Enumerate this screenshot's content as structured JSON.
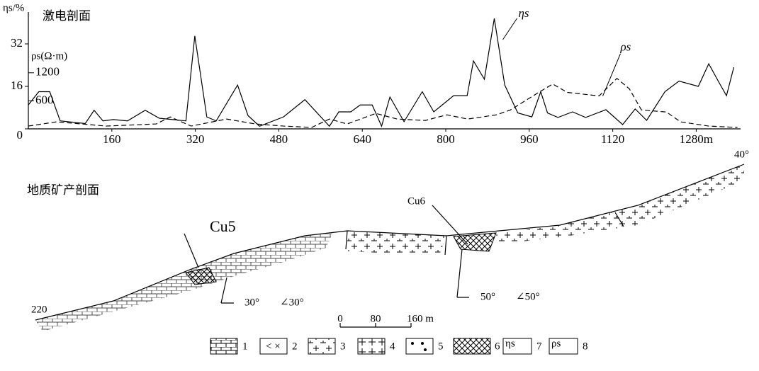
{
  "chart_data": {
    "type": "line",
    "title": "激电剖面",
    "y_label": "ηs/%",
    "y2_label": "ρs(Ω·m)",
    "xlim": [
      0,
      1365
    ],
    "xticks": [
      160,
      320,
      480,
      640,
      800,
      960,
      1120,
      {
        "value": 1280,
        "label": "1280m"
      }
    ],
    "ylim": [
      0,
      44
    ],
    "yticks": [
      0,
      16,
      32
    ],
    "y2lim": [
      0,
      2500
    ],
    "y2ticks": [
      600,
      1200
    ],
    "series": [
      {
        "name": "ηs",
        "color": "#000000",
        "line_style": "solid",
        "x": [
          0,
          20,
          41,
          61,
          109,
          126,
          143,
          163,
          190,
          224,
          251,
          302,
          319,
          342,
          360,
          401,
          421,
          443,
          489,
          530,
          577,
          595,
          618,
          636,
          659,
          677,
          693,
          720,
          755,
          777,
          815,
          841,
          853,
          874,
          893,
          913,
          938,
          965,
          982,
          995,
          1015,
          1043,
          1068,
          1107,
          1139,
          1163,
          1185,
          1220,
          1247,
          1284,
          1304,
          1325,
          1338,
          1352
        ],
        "values": [
          9,
          14,
          14,
          3,
          2,
          7,
          3,
          3.5,
          3,
          7,
          4,
          3,
          35,
          4.5,
          3,
          16.5,
          5,
          1,
          4.5,
          11,
          1,
          6.4,
          6.4,
          9,
          9,
          1,
          12,
          2.7,
          14,
          6.4,
          12.5,
          12.5,
          25.6,
          18.7,
          41.6,
          16.5,
          6,
          4.5,
          14,
          6,
          4.3,
          6.4,
          4.3,
          7.2,
          1.6,
          7.5,
          3.2,
          14,
          18,
          16,
          24.5,
          17,
          12.5,
          23.2
        ]
      },
      {
        "name": "ρs",
        "color": "#000000",
        "line_style": "dashed",
        "axis": "y2",
        "x": [
          0,
          54,
          149,
          245,
          272,
          312,
          380,
          435,
          489,
          543,
          577,
          611,
          666,
          707,
          761,
          802,
          842,
          897,
          924,
          978,
          1005,
          1033,
          1094,
          1128,
          1152,
          1175,
          1223,
          1250,
          1304,
          1359
        ],
        "values": [
          60,
          150,
          60,
          105,
          255,
          60,
          210,
          105,
          60,
          30,
          210,
          105,
          330,
          210,
          180,
          300,
          210,
          300,
          405,
          780,
          960,
          780,
          705,
          1080,
          855,
          405,
          360,
          150,
          60,
          30
        ]
      }
    ]
  },
  "section": {
    "title": "地质矿产剖面",
    "labels": {
      "cu5": "Cu5",
      "cu6": "Cu6",
      "dip1": "30°",
      "angle1": "∠30°",
      "dip2": "50°",
      "angle2": "∠50°",
      "start": "220",
      "end": "40°"
    },
    "scale": [
      "0",
      "80",
      "160 m"
    ],
    "legend": [
      "1",
      "2",
      "3",
      "4",
      "5",
      "6",
      "7",
      "8"
    ],
    "legend_symbols": [
      "ηs",
      "ρs"
    ]
  }
}
